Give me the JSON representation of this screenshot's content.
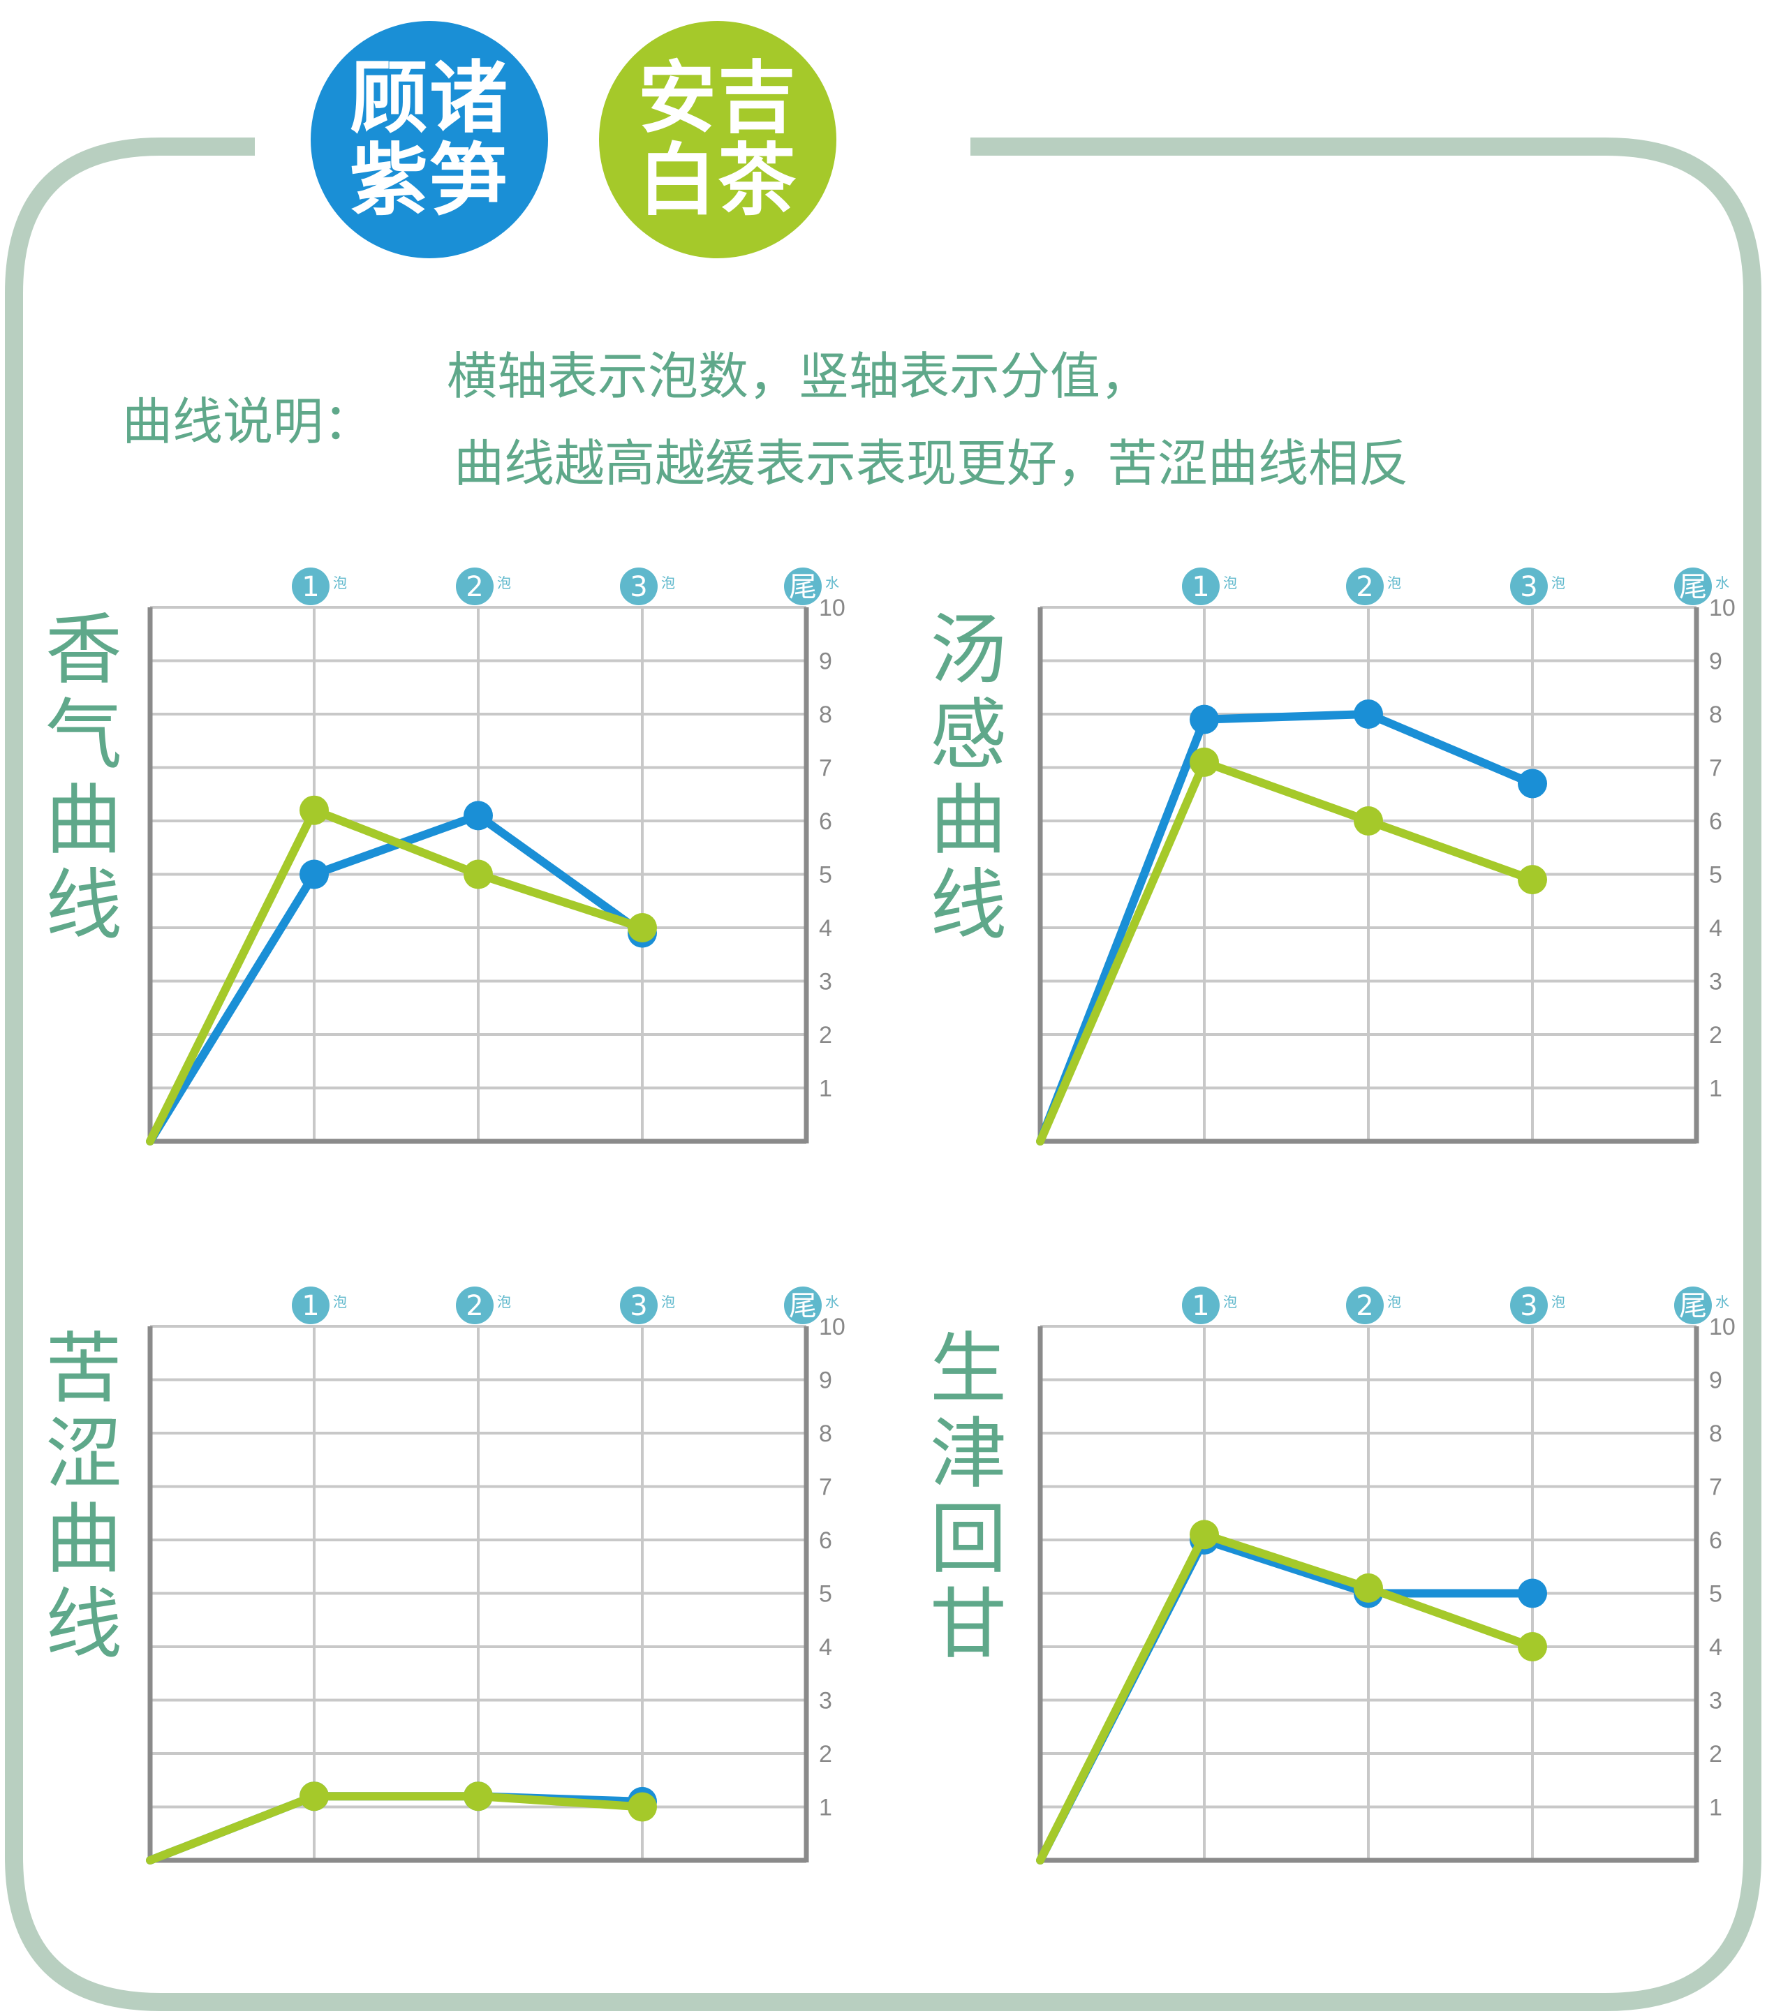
{
  "badges": [
    {
      "lines": [
        "顾诸",
        "紫笋"
      ],
      "color": "#1a8fd6"
    },
    {
      "lines": [
        "安吉",
        "白茶"
      ],
      "color": "#a5c92a"
    }
  ],
  "explanation": {
    "label": "曲线说明：",
    "line1": "横轴表示泡数，竖轴表示分值，",
    "line2": "曲线越高越缓表示表现更好，苦涩曲线相反"
  },
  "colors": {
    "series_a": "#1a8fd6",
    "series_b": "#a5c92a",
    "text": "#5fa88a",
    "axis": "#8a8a8a",
    "grid": "#c8c8c8",
    "frame": "#b8cfc0",
    "marker": "#5fb8cc"
  },
  "x_markers": [
    {
      "num": "1",
      "suffix": "泡"
    },
    {
      "num": "2",
      "suffix": "泡"
    },
    {
      "num": "3",
      "suffix": "泡"
    },
    {
      "num": "尾",
      "suffix": "水"
    }
  ],
  "chart_data": [
    {
      "type": "line",
      "title": "香气曲线",
      "title_chars": [
        "香",
        "气",
        "曲",
        "线"
      ],
      "x": [
        0,
        1,
        2,
        3
      ],
      "ylim": [
        0,
        10
      ],
      "y_ticks": [
        "1",
        "2",
        "3",
        "4",
        "5",
        "6",
        "7",
        "8",
        "9",
        "10"
      ],
      "series": [
        {
          "values": [
            0,
            5.0,
            6.1,
            3.9
          ],
          "color": "#1a8fd6"
        },
        {
          "values": [
            0,
            6.2,
            5.0,
            4.0
          ],
          "color": "#a5c92a"
        }
      ]
    },
    {
      "type": "line",
      "title": "汤感曲线",
      "title_chars": [
        "汤",
        "感",
        "曲",
        "线"
      ],
      "x": [
        0,
        1,
        2,
        3
      ],
      "ylim": [
        0,
        10
      ],
      "y_ticks": [
        "1",
        "2",
        "3",
        "4",
        "5",
        "6",
        "7",
        "8",
        "9",
        "10"
      ],
      "series": [
        {
          "values": [
            0,
            7.9,
            8.0,
            6.7
          ],
          "color": "#1a8fd6"
        },
        {
          "values": [
            0,
            7.1,
            6.0,
            4.9
          ],
          "color": "#a5c92a"
        }
      ]
    },
    {
      "type": "line",
      "title": "苦涩曲线",
      "title_chars": [
        "苦",
        "涩",
        "曲",
        "线"
      ],
      "x": [
        0,
        1,
        2,
        3
      ],
      "ylim": [
        0,
        10
      ],
      "y_ticks": [
        "1",
        "2",
        "3",
        "4",
        "5",
        "6",
        "7",
        "8",
        "9",
        "10"
      ],
      "series": [
        {
          "values": [
            0,
            1.2,
            1.2,
            1.1
          ],
          "color": "#1a8fd6"
        },
        {
          "values": [
            0,
            1.2,
            1.2,
            1.0
          ],
          "color": "#a5c92a"
        }
      ]
    },
    {
      "type": "line",
      "title": "生津回甘",
      "title_chars": [
        "生",
        "津",
        "回",
        "甘"
      ],
      "x": [
        0,
        1,
        2,
        3
      ],
      "ylim": [
        0,
        10
      ],
      "y_ticks": [
        "1",
        "2",
        "3",
        "4",
        "5",
        "6",
        "7",
        "8",
        "9",
        "10"
      ],
      "series": [
        {
          "values": [
            0,
            6.0,
            5.0,
            5.0
          ],
          "color": "#1a8fd6"
        },
        {
          "values": [
            0,
            6.1,
            5.1,
            4.0
          ],
          "color": "#a5c92a"
        }
      ]
    }
  ]
}
